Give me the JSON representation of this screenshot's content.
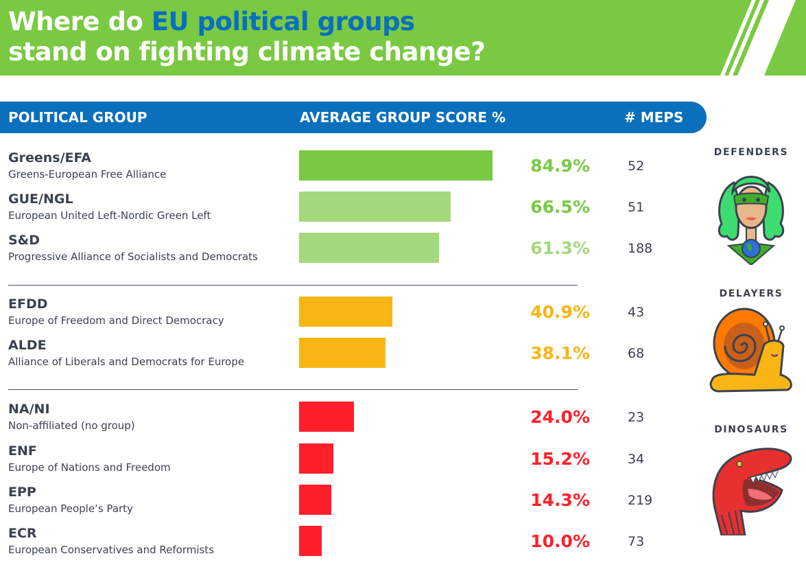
{
  "title": {
    "part1": "Where do ",
    "accent": "EU political groups",
    "part2": "stand on fighting climate change?"
  },
  "colors": {
    "banner_green": "#7ac943",
    "header_blue": "#0a6fbd",
    "defender_dark": "#7ac943",
    "defender_light": "#a3d97c",
    "delayer": "#f8b514",
    "dinosaur": "#ff1f2b"
  },
  "table_header": {
    "group": "POLITICAL GROUP",
    "score": "AVERAGE GROUP SCORE %",
    "meps": "# MEPS"
  },
  "categories": [
    {
      "label": "DEFENDERS",
      "icon": "superhero-icon"
    },
    {
      "label": "DELAYERS",
      "icon": "snail-icon"
    },
    {
      "label": "DINOSAURS",
      "icon": "dinosaur-icon"
    }
  ],
  "chart_data": {
    "type": "bar",
    "orientation": "horizontal",
    "title": "Where do EU political groups stand on fighting climate change?",
    "xlabel": "AVERAGE GROUP SCORE %",
    "ylabel": "POLITICAL GROUP",
    "xlim": [
      0,
      100
    ],
    "grid": false,
    "categories": [
      "Greens/EFA",
      "GUE/NGL",
      "S&D",
      "EFDD",
      "ALDE",
      "NA/NI",
      "ENF",
      "EPP",
      "ECR"
    ],
    "rows": [
      {
        "abbr": "Greens/EFA",
        "name": "Greens-European Free Alliance",
        "score": 84.9,
        "score_label": "84.9%",
        "meps": 52,
        "group": "DEFENDERS",
        "color": "#7ac943",
        "text_color": "#7ac943"
      },
      {
        "abbr": "GUE/NGL",
        "name": "European United Left-Nordic Green Left",
        "score": 66.5,
        "score_label": "66.5%",
        "meps": 51,
        "group": "DEFENDERS",
        "color": "#a3d97c",
        "text_color": "#7ac943"
      },
      {
        "abbr": "S&D",
        "name": "Progressive Alliance of Socialists and Democrats",
        "score": 61.3,
        "score_label": "61.3%",
        "meps": 188,
        "group": "DEFENDERS",
        "color": "#a3d97c",
        "text_color": "#a3d97c"
      },
      {
        "abbr": "EFDD",
        "name": "Europe of Freedom and Direct Democracy",
        "score": 40.9,
        "score_label": "40.9%",
        "meps": 43,
        "group": "DELAYERS",
        "color": "#f8b514",
        "text_color": "#f8b514"
      },
      {
        "abbr": "ALDE",
        "name": "Alliance of Liberals and Democrats for Europe",
        "score": 38.1,
        "score_label": "38.1%",
        "meps": 68,
        "group": "DELAYERS",
        "color": "#f8b514",
        "text_color": "#f8b514"
      },
      {
        "abbr": "NA/NI",
        "name": "Non-affiliated (no group)",
        "score": 24.0,
        "score_label": "24.0%",
        "meps": 23,
        "group": "DINOSAURS",
        "color": "#ff1f2b",
        "text_color": "#ff1f2b"
      },
      {
        "abbr": "ENF",
        "name": "Europe of Nations and Freedom",
        "score": 15.2,
        "score_label": "15.2%",
        "meps": 34,
        "group": "DINOSAURS",
        "color": "#ff1f2b",
        "text_color": "#ff1f2b"
      },
      {
        "abbr": "EPP",
        "name": "European People’s Party",
        "score": 14.3,
        "score_label": "14.3%",
        "meps": 219,
        "group": "DINOSAURS",
        "color": "#ff1f2b",
        "text_color": "#ff1f2b"
      },
      {
        "abbr": "ECR",
        "name": "European Conservatives and Reformists",
        "score": 10.0,
        "score_label": "10.0%",
        "meps": 73,
        "group": "DINOSAURS",
        "color": "#ff1f2b",
        "text_color": "#ff1f2b"
      }
    ]
  }
}
